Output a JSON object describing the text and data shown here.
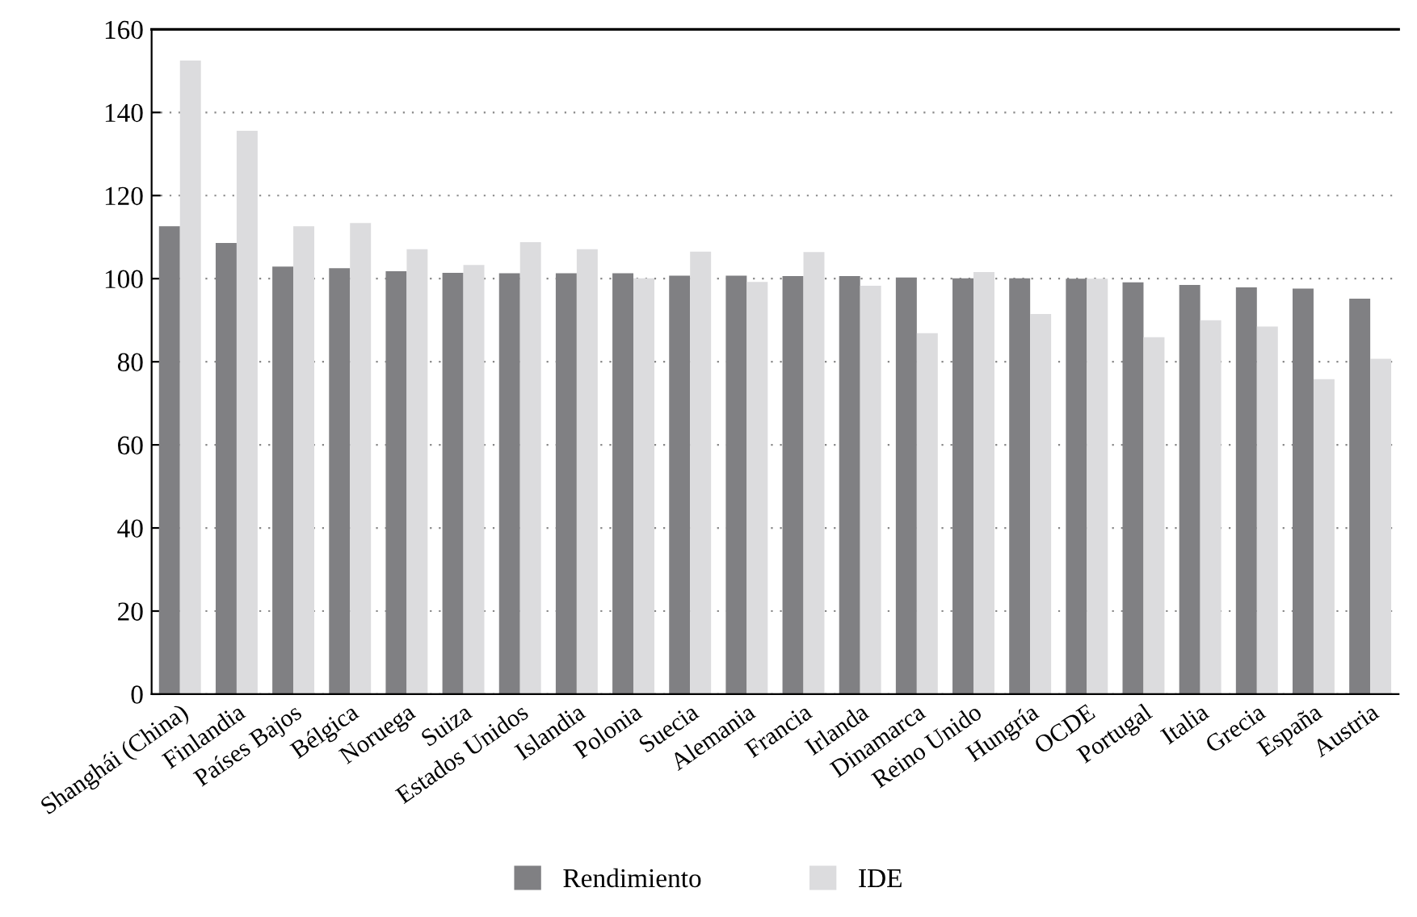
{
  "chart_data": {
    "type": "bar",
    "categories": [
      "Shanghái (China)",
      "Finlandia",
      "Países Bajos",
      "Bélgica",
      "Noruega",
      "Suiza",
      "Estados Unidos",
      "Islandia",
      "Polonia",
      "Suecia",
      "Alemania",
      "Francia",
      "Irlanda",
      "Dinamarca",
      "Reino Unido",
      "Hungría",
      "OCDE",
      "Portugal",
      "Italia",
      "Grecia",
      "España",
      "Austria"
    ],
    "series": [
      {
        "name": "Rendimiento",
        "color": "#808083",
        "values": [
          112.6,
          108.6,
          102.9,
          102.5,
          101.8,
          101.4,
          101.3,
          101.3,
          101.3,
          100.7,
          100.7,
          100.6,
          100.6,
          100.3,
          100.1,
          100.1,
          100,
          99.1,
          98.5,
          97.9,
          97.6,
          95.2
        ]
      },
      {
        "name": "IDE",
        "color": "#dcdcde",
        "values": [
          152.5,
          135.6,
          112.6,
          113.4,
          107.1,
          103.3,
          108.8,
          107.1,
          100.1,
          106.5,
          99.2,
          106.4,
          98.3,
          86.9,
          101.6,
          91.5,
          100,
          85.9,
          90.0,
          88.5,
          75.8,
          80.7
        ]
      }
    ],
    "ylim": [
      0,
      160
    ],
    "yticks": [
      0,
      20,
      40,
      60,
      80,
      100,
      120,
      140,
      160
    ],
    "grid": "y",
    "legend": "bottom"
  }
}
